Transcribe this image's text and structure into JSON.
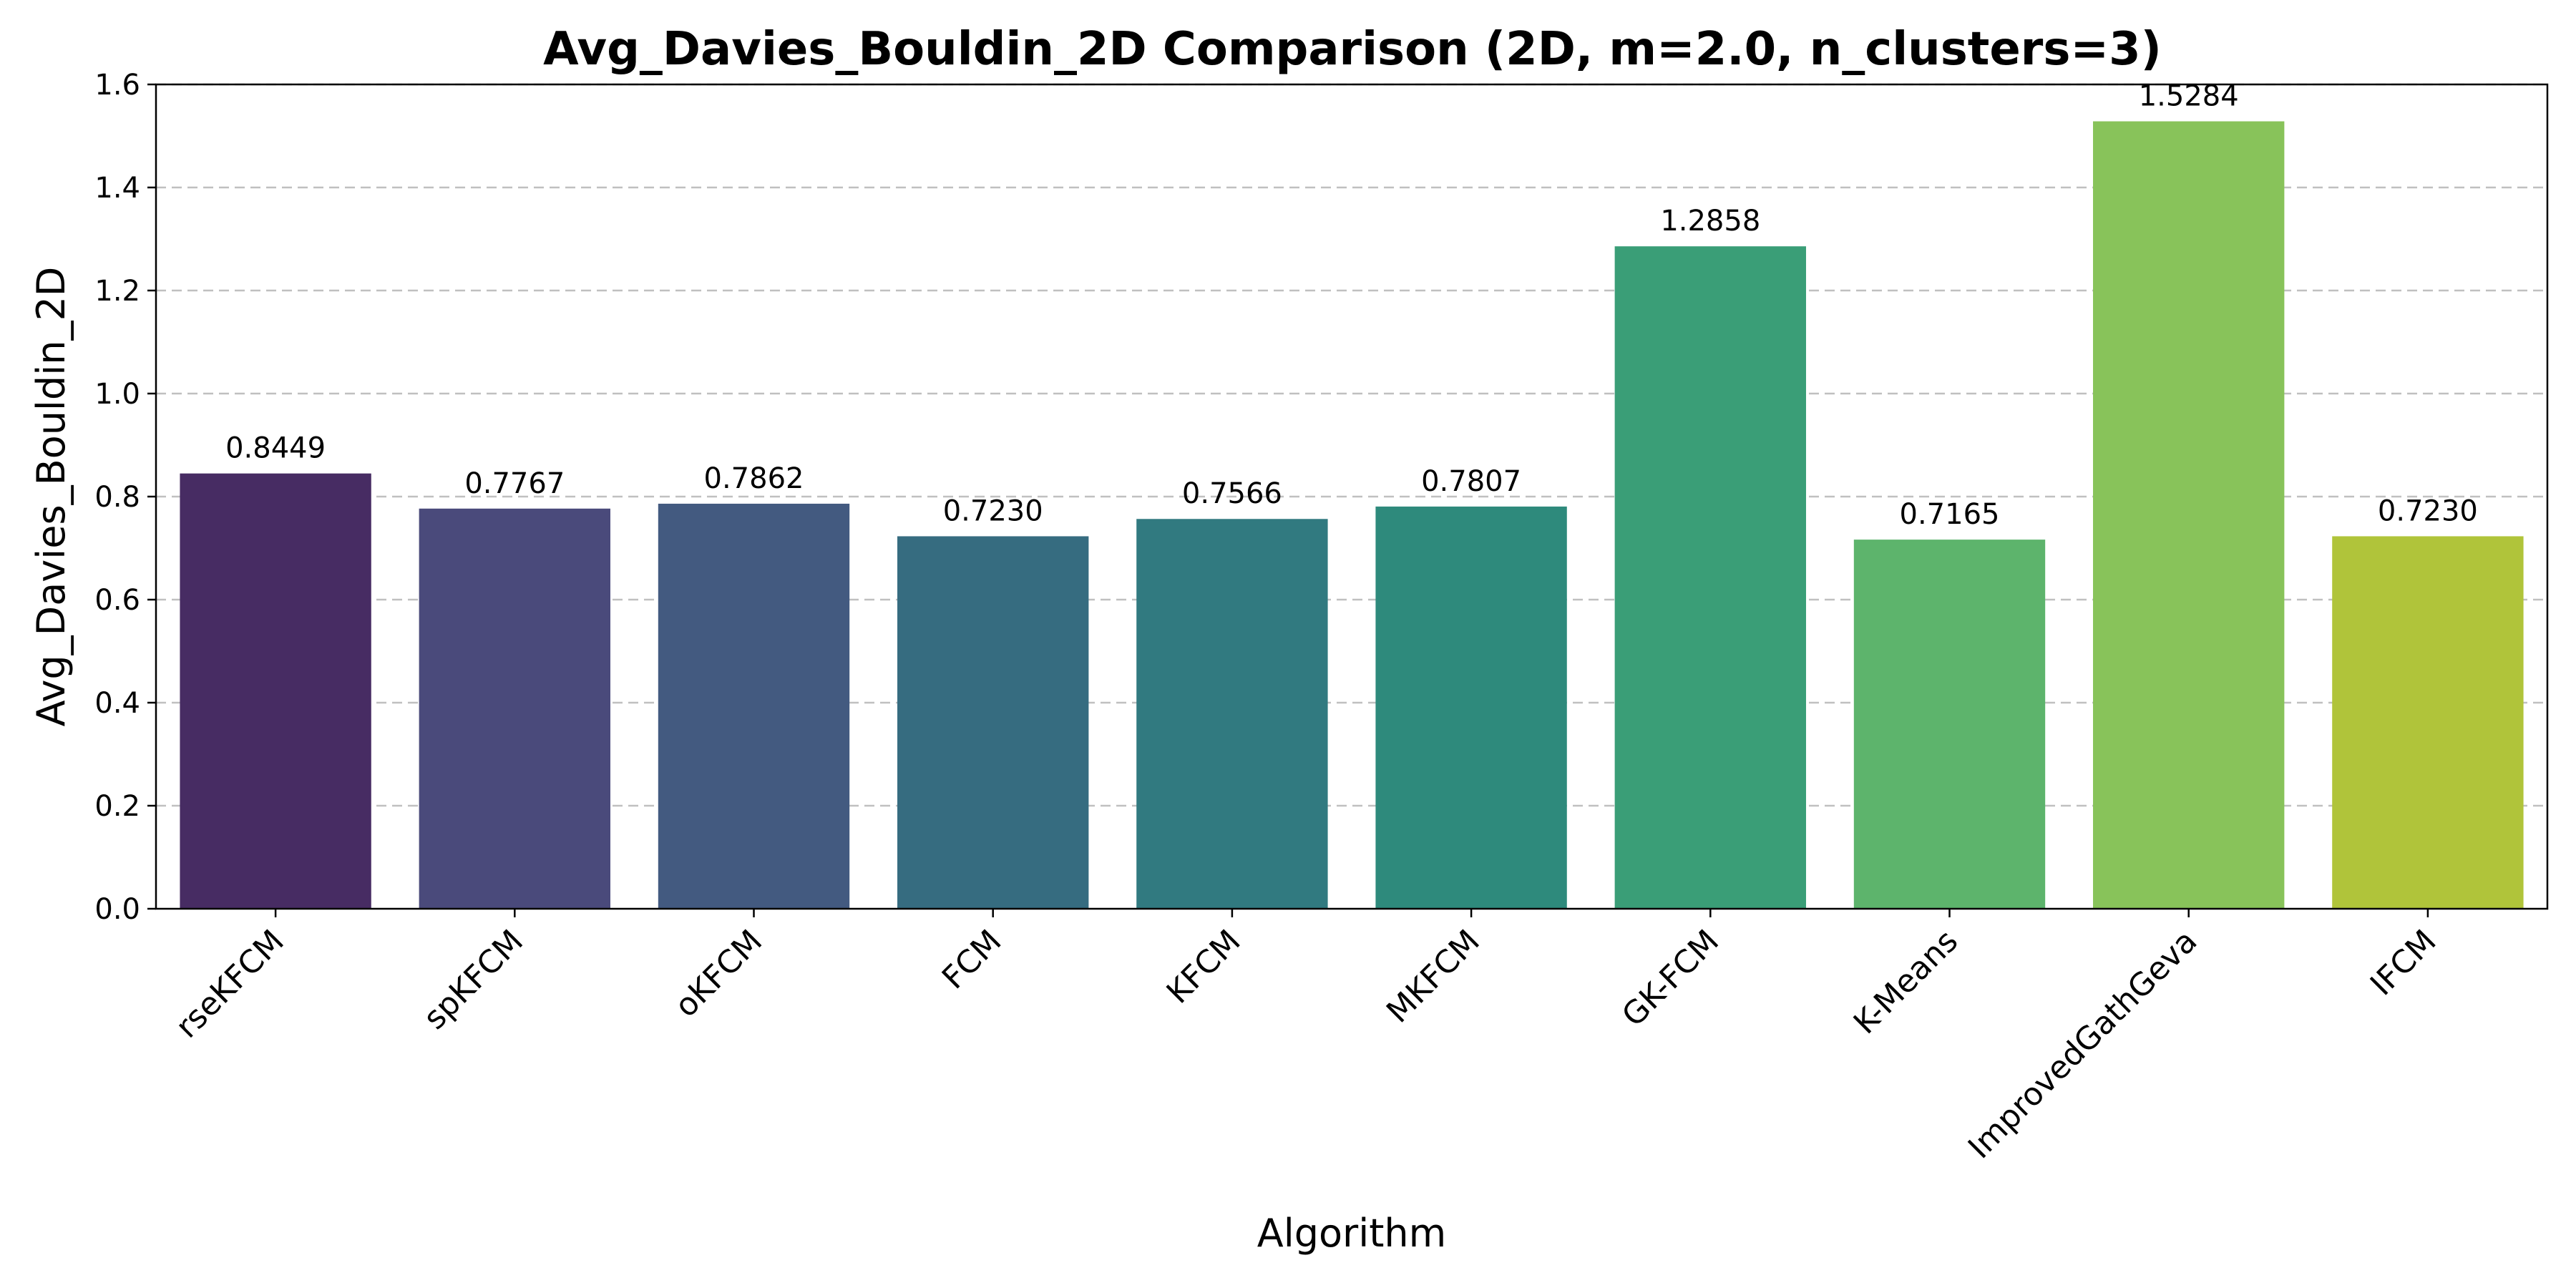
{
  "chart_data": {
    "type": "bar",
    "title": "Avg_Davies_Bouldin_2D Comparison (2D, m=2.0, n_clusters=3)",
    "xlabel": "Algorithm",
    "ylabel": "Avg_Davies_Bouldin_2D",
    "ylim": [
      0,
      1.6
    ],
    "yticks": [
      "0.0",
      "0.2",
      "0.4",
      "0.6",
      "0.8",
      "1.0",
      "1.2",
      "1.4",
      "1.6"
    ],
    "grid": "y-dashed",
    "categories": [
      "rseKFCM",
      "spKFCM",
      "oKFCM",
      "FCM",
      "KFCM",
      "MKFCM",
      "GK-FCM",
      "K-Means",
      "ImprovedGathGeva",
      "IFCM"
    ],
    "values": [
      0.8449,
      0.7767,
      0.7862,
      0.723,
      0.7566,
      0.7807,
      1.2858,
      0.7165,
      1.5284,
      0.723
    ],
    "data_labels": [
      "0.8449",
      "0.7767",
      "0.7862",
      "0.7230",
      "0.7566",
      "0.7807",
      "1.2858",
      "0.7165",
      "1.5284",
      "0.7230"
    ],
    "colors": [
      "#472c63",
      "#4a4a7b",
      "#435a80",
      "#366c80",
      "#317a80",
      "#2e8a7c",
      "#3a9e77",
      "#5db46c",
      "#88c35a",
      "#b0c43a"
    ]
  }
}
